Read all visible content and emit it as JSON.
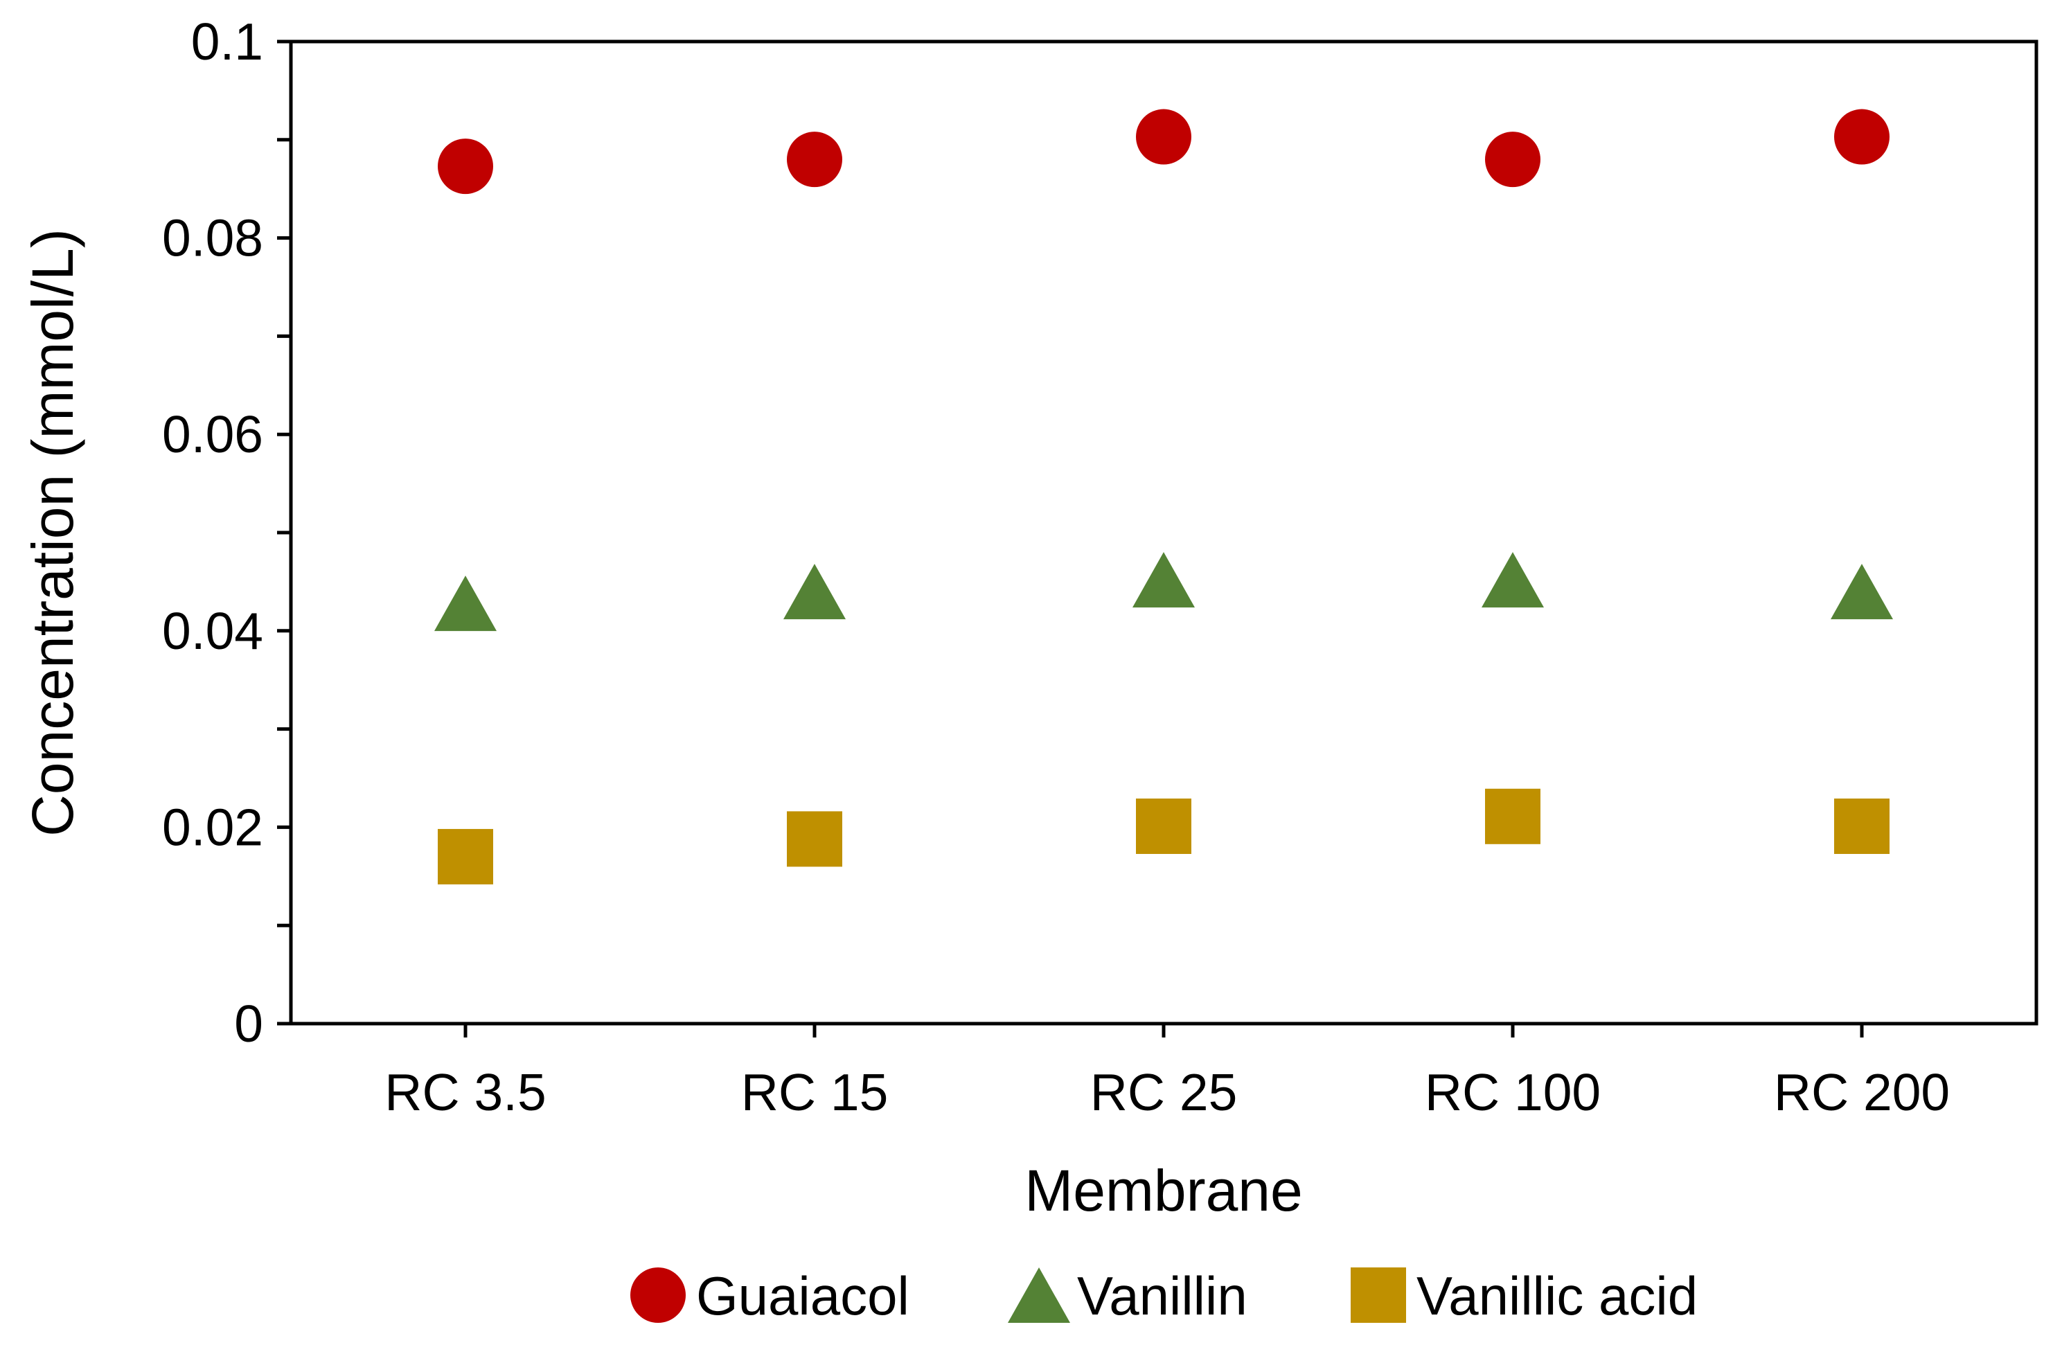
{
  "chart_data": {
    "type": "scatter",
    "xlabel": "Membrane",
    "ylabel": "Concentration (mmol/L)",
    "categories": [
      "RC 3.5",
      "RC 15",
      "RC 25",
      "RC 100",
      "RC 200"
    ],
    "ylim": [
      0,
      0.1
    ],
    "yticks": [
      "0",
      "0.02",
      "0.04",
      "0.06",
      "0.08",
      "0.1"
    ],
    "ytick_values": [
      0,
      0.02,
      0.04,
      0.06,
      0.08,
      0.1
    ],
    "grid": false,
    "legend_position": "bottom",
    "series": [
      {
        "name": "Guaiacol",
        "marker": "circle",
        "color": "#c00000",
        "values": [
          0.0873,
          0.088,
          0.0903,
          0.088,
          0.0903
        ]
      },
      {
        "name": "Vanillin",
        "marker": "triangle",
        "color": "#548235",
        "values": [
          0.0428,
          0.044,
          0.0452,
          0.0452,
          0.044
        ]
      },
      {
        "name": "Vanillic acid",
        "marker": "square",
        "color": "#bf9000",
        "values": [
          0.017,
          0.0188,
          0.0201,
          0.0211,
          0.0201
        ]
      }
    ]
  }
}
